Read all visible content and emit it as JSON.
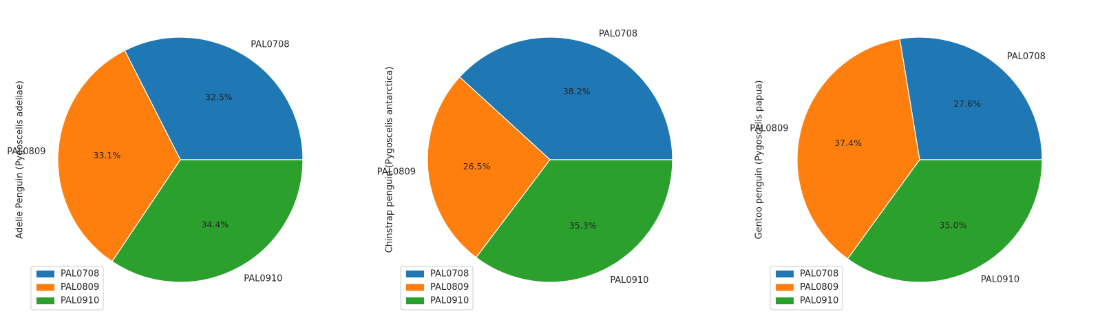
{
  "chart_data": [
    {
      "type": "pie",
      "ylabel": "Adelie Penguin (Pygoscelis adeliae)",
      "labels": [
        "PAL0708",
        "PAL0809",
        "PAL0910"
      ],
      "values": [
        32.5,
        33.1,
        34.4
      ],
      "value_labels": [
        "32.5%",
        "33.1%",
        "34.4%"
      ],
      "colors": [
        "#1f77b4",
        "#ff7f0e",
        "#2ca02c"
      ],
      "legend": {
        "position": "lower-left",
        "entries": [
          "PAL0708",
          "PAL0809",
          "PAL0910"
        ]
      }
    },
    {
      "type": "pie",
      "ylabel": "Chinstrap penguin (Pygoscelis antarctica)",
      "labels": [
        "PAL0708",
        "PAL0809",
        "PAL0910"
      ],
      "values": [
        38.2,
        26.5,
        35.3
      ],
      "value_labels": [
        "38.2%",
        "26.5%",
        "35.3%"
      ],
      "colors": [
        "#1f77b4",
        "#ff7f0e",
        "#2ca02c"
      ],
      "legend": {
        "position": "lower-left",
        "entries": [
          "PAL0708",
          "PAL0809",
          "PAL0910"
        ]
      }
    },
    {
      "type": "pie",
      "ylabel": "Gentoo penguin (Pygoscelis papua)",
      "labels": [
        "PAL0708",
        "PAL0809",
        "PAL0910"
      ],
      "values": [
        27.6,
        37.4,
        35.0
      ],
      "value_labels": [
        "27.6%",
        "37.4%",
        "35.0%"
      ],
      "colors": [
        "#1f77b4",
        "#ff7f0e",
        "#2ca02c"
      ],
      "legend": {
        "position": "lower-left",
        "entries": [
          "PAL0708",
          "PAL0809",
          "PAL0910"
        ]
      }
    }
  ]
}
